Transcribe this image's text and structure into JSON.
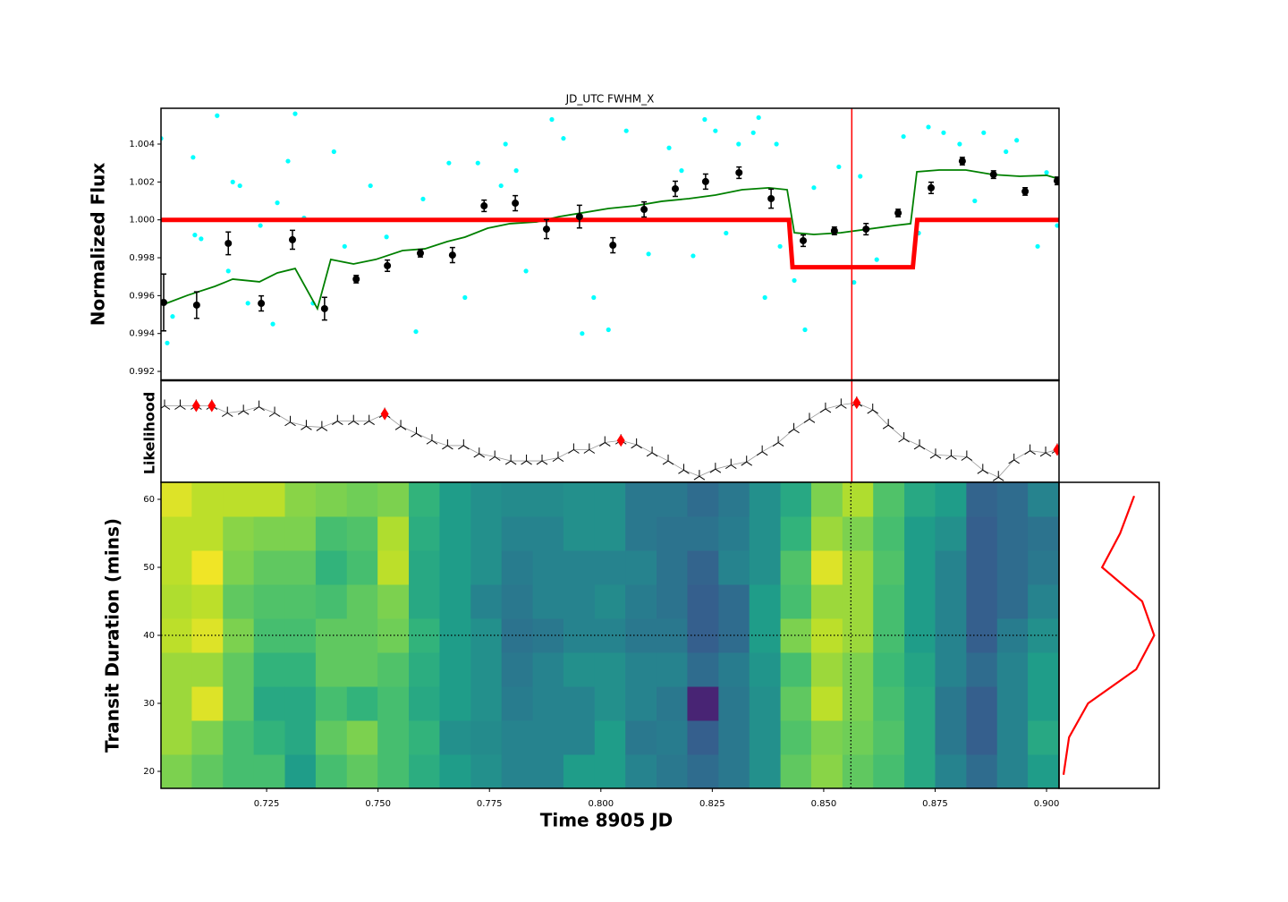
{
  "chart_data": [
    {
      "type": "flux",
      "title": "JD_UTC  FWHM_X",
      "ylabel": "Normalized Flux",
      "xlim": [
        0.7013,
        0.9028
      ],
      "ylim": [
        0.99153,
        1.00589
      ],
      "yticks": [
        0.992,
        0.994,
        0.996,
        0.998,
        {
          "value": 1.0,
          "label": "1.000"
        },
        1.002,
        1.004
      ],
      "marker_x": 0.8563,
      "marker_color": "#ff0000",
      "series": [
        {
          "kind": "scatter",
          "color": "#00ffff",
          "x": [
            0.7013,
            0.7027,
            0.7039,
            0.7085,
            0.7089,
            0.7103,
            0.7139,
            0.7164,
            0.7174,
            0.719,
            0.7208,
            0.7236,
            0.7264,
            0.7274,
            0.7298,
            0.7314,
            0.7334,
            0.7354,
            0.7401,
            0.7425,
            0.7483,
            0.7519,
            0.7585,
            0.7601,
            0.7659,
            0.7695,
            0.7724,
            0.7776,
            0.7786,
            0.781,
            0.7832,
            0.789,
            0.7916,
            0.7958,
            0.7984,
            0.8017,
            0.8057,
            0.8107,
            0.8153,
            0.8181,
            0.8207,
            0.8233,
            0.8257,
            0.8281,
            0.8309,
            0.8342,
            0.8354,
            0.8368,
            0.8394,
            0.8402,
            0.8434,
            0.8458,
            0.8478,
            0.8534,
            0.8568,
            0.8582,
            0.8619,
            0.8679,
            0.8713,
            0.8735,
            0.8769,
            0.8805,
            0.8839,
            0.8859,
            0.8909,
            0.8933,
            0.898,
            0.9,
            0.9024
          ],
          "values": [
            1.0043,
            0.9935,
            0.9949,
            1.0033,
            0.9992,
            0.999,
            1.0055,
            0.9973,
            1.002,
            1.0018,
            0.9956,
            0.9997,
            0.9945,
            1.0009,
            1.0031,
            1.0056,
            1.0001,
            0.9956,
            1.0036,
            0.9986,
            1.0018,
            0.9991,
            0.9941,
            1.0011,
            1.003,
            0.9959,
            1.003,
            1.0018,
            1.004,
            1.0026,
            0.9973,
            1.0053,
            1.0043,
            0.994,
            0.9959,
            0.9942,
            1.0047,
            0.9982,
            1.0038,
            1.0026,
            0.9981,
            1.0053,
            1.0047,
            0.9993,
            1.004,
            1.0046,
            1.0054,
            0.9959,
            1.004,
            0.9986,
            0.9968,
            0.9942,
            1.0017,
            1.0028,
            0.9967,
            1.0023,
            0.9979,
            1.0044,
            0.9993,
            1.0049,
            1.0046,
            1.004,
            1.001,
            1.0046,
            1.0036,
            1.0042,
            0.9986,
            1.0025,
            0.9997
          ]
        },
        {
          "kind": "line",
          "color": "#008000",
          "x": [
            0.7019,
            0.7073,
            0.7134,
            0.7174,
            0.7234,
            0.7274,
            0.7314,
            0.7364,
            0.7394,
            0.7445,
            0.7495,
            0.7555,
            0.7605,
            0.7655,
            0.7695,
            0.7746,
            0.7796,
            0.7856,
            0.7906,
            0.7956,
            0.8017,
            0.8077,
            0.8137,
            0.8197,
            0.8257,
            0.8317,
            0.8377,
            0.8418,
            0.8434,
            0.8478,
            0.8538,
            0.8599,
            0.8659,
            0.8695,
            0.8709,
            0.8759,
            0.8819,
            0.888,
            0.894,
            0.9,
            0.9028
          ],
          "values": [
            0.99554,
            0.99602,
            0.99649,
            0.99687,
            0.99673,
            0.9972,
            0.99743,
            0.99531,
            0.99791,
            0.99767,
            0.99791,
            0.99838,
            0.99847,
            0.99885,
            0.99909,
            0.99956,
            0.9998,
            0.99989,
            1.00017,
            1.00036,
            1.0006,
            1.00074,
            1.00098,
            1.00112,
            1.00131,
            1.00159,
            1.00169,
            1.00159,
            0.99932,
            0.99923,
            0.99932,
            0.99951,
            0.9997,
            0.9998,
            1.00254,
            1.00263,
            1.00263,
            1.00239,
            1.0023,
            1.00235,
            1.00216
          ]
        },
        {
          "kind": "model",
          "color": "#ff0000",
          "x": [
            0.7013,
            0.8422,
            0.843,
            0.87,
            0.871,
            0.9028
          ],
          "values": [
            1.0,
            1.0,
            0.9975,
            0.9975,
            1.0,
            1.0
          ]
        },
        {
          "kind": "errorbar",
          "color": "#000000",
          "x": [
            0.7019,
            0.7093,
            0.7164,
            0.7238,
            0.7308,
            0.738,
            0.7451,
            0.7521,
            0.7595,
            0.7667,
            0.7738,
            0.7808,
            0.7878,
            0.7952,
            0.8027,
            0.8097,
            0.8167,
            0.8235,
            0.831,
            0.8382,
            0.8454,
            0.8524,
            0.8595,
            0.8667,
            0.8741,
            0.8811,
            0.8881,
            0.8952,
            0.9024
          ],
          "values": [
            0.99564,
            0.9955,
            0.99876,
            0.99559,
            0.99895,
            0.99531,
            0.99687,
            0.99758,
            0.99824,
            0.99814,
            1.00074,
            1.00088,
            0.99951,
            1.00017,
            0.99866,
            1.00055,
            1.00164,
            1.00202,
            1.00249,
            1.00112,
            0.9989,
            0.99942,
            0.99951,
            1.00036,
            1.00169,
            1.0031,
            1.00239,
            1.0015,
            1.00206
          ],
          "errors": [
            0.0015,
            0.0007,
            0.0006,
            0.0004,
            0.0005,
            0.0006,
            0.0002,
            0.0003,
            0.0002,
            0.0004,
            0.0003,
            0.0004,
            0.0005,
            0.0006,
            0.0004,
            0.0004,
            0.0004,
            0.0004,
            0.0003,
            0.0005,
            0.0003,
            0.0002,
            0.0003,
            0.0002,
            0.0003,
            0.0002,
            0.0002,
            0.0002,
            0.0002
          ]
        }
      ]
    },
    {
      "type": "likelihood",
      "ylabel": "Likelihood",
      "xlim": [
        0.7013,
        0.9028
      ],
      "ylim": [
        0,
        1
      ],
      "marker_x": 0.8563,
      "marker_color": "#ff0000",
      "series": [
        {
          "kind": "tri",
          "color": "#000000",
          "x": [
            0.7021,
            0.7056,
            0.7092,
            0.7127,
            0.7162,
            0.7198,
            0.7233,
            0.7268,
            0.7303,
            0.7339,
            0.7374,
            0.7409,
            0.7445,
            0.748,
            0.7515,
            0.7551,
            0.7586,
            0.7621,
            0.7656,
            0.7692,
            0.7727,
            0.7762,
            0.7798,
            0.7833,
            0.7868,
            0.7904,
            0.7939,
            0.7974,
            0.8009,
            0.8045,
            0.808,
            0.8115,
            0.8151,
            0.8186,
            0.8221,
            0.8257,
            0.8292,
            0.8327,
            0.8362,
            0.8398,
            0.8433,
            0.8468,
            0.8504,
            0.8539,
            0.8574,
            0.861,
            0.8645,
            0.868,
            0.8715,
            0.8751,
            0.8786,
            0.8821,
            0.8857,
            0.8892,
            0.8927,
            0.8963,
            0.8998,
            0.9024
          ],
          "values": [
            0.75,
            0.75,
            0.75,
            0.75,
            0.68,
            0.7,
            0.74,
            0.68,
            0.59,
            0.55,
            0.54,
            0.6,
            0.6,
            0.6,
            0.67,
            0.55,
            0.48,
            0.41,
            0.36,
            0.36,
            0.28,
            0.25,
            0.21,
            0.21,
            0.21,
            0.24,
            0.32,
            0.32,
            0.39,
            0.41,
            0.37,
            0.29,
            0.21,
            0.12,
            0.06,
            0.13,
            0.17,
            0.2,
            0.3,
            0.39,
            0.52,
            0.62,
            0.72,
            0.76,
            0.78,
            0.71,
            0.56,
            0.43,
            0.36,
            0.27,
            0.26,
            0.25,
            0.12,
            0.05,
            0.22,
            0.31,
            0.29,
            0.32
          ]
        },
        {
          "kind": "diamond",
          "color": "#ff0000",
          "x": [
            0.7092,
            0.7127,
            0.7515,
            0.8045,
            0.8574,
            0.9024
          ],
          "values": [
            0.75,
            0.75,
            0.67,
            0.41,
            0.78,
            0.32
          ]
        }
      ]
    },
    {
      "type": "heatmap",
      "xlabel": "Time 8905 JD",
      "ylabel": "Transit Duration (mins)",
      "xlim": [
        0.7013,
        0.9028
      ],
      "ylim": [
        17.5,
        62.5
      ],
      "xticks": [
        0.725,
        {
          "value": 0.75,
          "label": "0.750"
        },
        0.775,
        {
          "value": 0.8,
          "label": "0.800"
        },
        0.825,
        {
          "value": 0.85,
          "label": "0.850"
        },
        0.875,
        {
          "value": 0.9,
          "label": "0.900"
        }
      ],
      "yticks": [
        20,
        30,
        40,
        50,
        60
      ],
      "colormap": "viridis",
      "best_x": 0.8561,
      "best_y": 40,
      "x_bins": [
        0.7013,
        0.7082,
        0.7152,
        0.7221,
        0.7291,
        0.736,
        0.743,
        0.7499,
        0.7569,
        0.7638,
        0.7708,
        0.7777,
        0.7847,
        0.7916,
        0.7986,
        0.8055,
        0.8125,
        0.8194,
        0.8264,
        0.8333,
        0.8403,
        0.8472,
        0.8542,
        0.8611,
        0.8681,
        0.875,
        0.882,
        0.8889,
        0.8958,
        0.9028
      ],
      "y_bins": [
        17.5,
        22.5,
        27.5,
        32.5,
        37.5,
        42.5,
        47.5,
        52.5,
        57.5,
        62.5
      ],
      "values": [
        [
          0.8,
          0.75,
          0.7,
          0.7,
          0.55,
          0.7,
          0.75,
          0.7,
          0.62,
          0.55,
          0.5,
          0.45,
          0.45,
          0.55,
          0.55,
          0.45,
          0.4,
          0.35,
          0.4,
          0.5,
          0.75,
          0.82,
          0.75,
          0.7,
          0.6,
          0.45,
          0.35,
          0.45,
          0.55
        ],
        [
          0.85,
          0.8,
          0.7,
          0.65,
          0.6,
          0.75,
          0.8,
          0.7,
          0.65,
          0.5,
          0.48,
          0.45,
          0.45,
          0.45,
          0.55,
          0.4,
          0.42,
          0.3,
          0.4,
          0.5,
          0.72,
          0.8,
          0.78,
          0.72,
          0.6,
          0.4,
          0.3,
          0.45,
          0.6
        ],
        [
          0.85,
          0.95,
          0.75,
          0.6,
          0.6,
          0.7,
          0.65,
          0.7,
          0.6,
          0.55,
          0.5,
          0.42,
          0.45,
          0.45,
          0.5,
          0.45,
          0.4,
          0.1,
          0.4,
          0.5,
          0.75,
          0.9,
          0.8,
          0.7,
          0.6,
          0.4,
          0.3,
          0.45,
          0.55
        ],
        [
          0.85,
          0.85,
          0.75,
          0.65,
          0.65,
          0.75,
          0.75,
          0.72,
          0.62,
          0.55,
          0.5,
          0.4,
          0.45,
          0.5,
          0.5,
          0.45,
          0.45,
          0.35,
          0.42,
          0.52,
          0.7,
          0.85,
          0.8,
          0.68,
          0.58,
          0.45,
          0.35,
          0.45,
          0.55
        ],
        [
          0.9,
          0.95,
          0.8,
          0.7,
          0.7,
          0.75,
          0.75,
          0.78,
          0.65,
          0.55,
          0.5,
          0.38,
          0.4,
          0.45,
          0.45,
          0.4,
          0.4,
          0.3,
          0.35,
          0.55,
          0.8,
          0.9,
          0.85,
          0.7,
          0.55,
          0.45,
          0.3,
          0.42,
          0.5
        ],
        [
          0.88,
          0.9,
          0.75,
          0.72,
          0.72,
          0.7,
          0.75,
          0.8,
          0.6,
          0.55,
          0.45,
          0.4,
          0.45,
          0.45,
          0.48,
          0.42,
          0.38,
          0.3,
          0.35,
          0.55,
          0.7,
          0.85,
          0.85,
          0.7,
          0.55,
          0.45,
          0.3,
          0.35,
          0.45
        ],
        [
          0.9,
          0.98,
          0.8,
          0.75,
          0.75,
          0.65,
          0.7,
          0.9,
          0.6,
          0.55,
          0.5,
          0.42,
          0.45,
          0.45,
          0.45,
          0.45,
          0.38,
          0.32,
          0.45,
          0.5,
          0.72,
          0.95,
          0.85,
          0.72,
          0.55,
          0.45,
          0.3,
          0.35,
          0.4
        ],
        [
          0.9,
          0.9,
          0.82,
          0.8,
          0.8,
          0.7,
          0.72,
          0.88,
          0.62,
          0.55,
          0.5,
          0.45,
          0.45,
          0.5,
          0.5,
          0.4,
          0.38,
          0.38,
          0.42,
          0.5,
          0.65,
          0.85,
          0.8,
          0.7,
          0.55,
          0.5,
          0.3,
          0.35,
          0.38
        ],
        [
          0.95,
          0.9,
          0.9,
          0.9,
          0.82,
          0.8,
          0.78,
          0.8,
          0.65,
          0.55,
          0.5,
          0.48,
          0.48,
          0.5,
          0.5,
          0.4,
          0.4,
          0.35,
          0.4,
          0.5,
          0.6,
          0.8,
          0.88,
          0.72,
          0.6,
          0.55,
          0.32,
          0.35,
          0.45
        ]
      ]
    },
    {
      "type": "profile",
      "color": "#ff0000",
      "xlim": [
        0,
        1
      ],
      "ylim": [
        17.5,
        62.5
      ],
      "durations": [
        19.5,
        25,
        30,
        35,
        40,
        45,
        50,
        55,
        60.5
      ],
      "values": [
        0.045,
        0.1,
        0.29,
        0.77,
        0.95,
        0.83,
        0.43,
        0.61,
        0.75
      ]
    }
  ]
}
